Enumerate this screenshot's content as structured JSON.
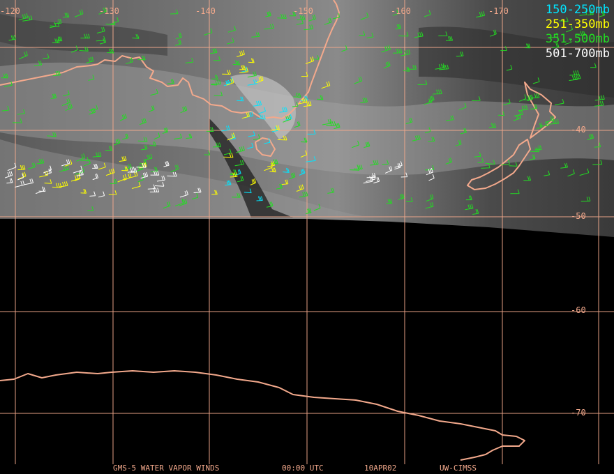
{
  "lon_labels": [
    "-120",
    "-130",
    "-140",
    "-150",
    "-160",
    "-170"
  ],
  "lat_labels": [
    "-40",
    "-50",
    "-60",
    "-70"
  ],
  "legend": [
    {
      "label": "150-250mb",
      "color": "#00e5ff"
    },
    {
      "label": "251-350mb",
      "color": "#ffff00"
    },
    {
      "label": "351-500mb",
      "color": "#22dd22"
    },
    {
      "label": "501-700mb",
      "color": "#ffffff"
    }
  ],
  "footer": {
    "product": "GMS-5 WATER VAPOR WINDS",
    "time": "00:00 UTC",
    "date": "10APR02",
    "source": "UW-CIMSS"
  },
  "colors": {
    "grid": "#f3a98c",
    "coast": "#f3a98c",
    "background": "#000000"
  }
}
